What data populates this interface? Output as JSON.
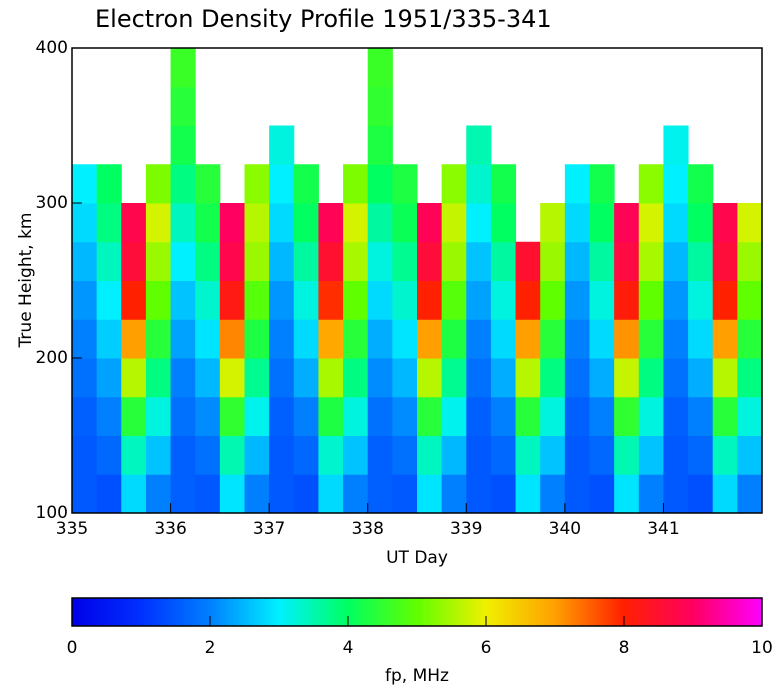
{
  "chart_data": {
    "type": "heatmap",
    "title": "Electron Density Profile 1951/335-341",
    "x_label": "UT Day",
    "y_label": "True Height, km",
    "x": [
      335,
      335.25,
      335.5,
      335.75,
      336,
      336.25,
      336.5,
      336.75,
      337,
      337.25,
      337.5,
      337.75,
      338,
      338.25,
      338.5,
      338.75,
      339,
      339.25,
      339.5,
      339.75,
      340,
      340.25,
      340.5,
      340.75,
      341,
      341.25,
      341.5,
      341.75,
      342
    ],
    "y": [
      100,
      125,
      150,
      175,
      200,
      225,
      250,
      275,
      300,
      325,
      350,
      375,
      400
    ],
    "xlim": [
      335,
      342
    ],
    "xticks": [
      335,
      336,
      337,
      338,
      339,
      340,
      341
    ],
    "ylim": [
      100,
      400
    ],
    "yticks": [
      100,
      200,
      300,
      400
    ],
    "z": [
      [
        1.5,
        1.5,
        1.6,
        1.8,
        2,
        2.2,
        2.5,
        2.8,
        3,
        null,
        null,
        null
      ],
      [
        1.4,
        1.7,
        2,
        2.3,
        2.7,
        3,
        3.4,
        3.8,
        4,
        null,
        null,
        null
      ],
      [
        2.8,
        3.4,
        4.4,
        5.6,
        7,
        8,
        8.6,
        8.8,
        null,
        null,
        null,
        null
      ],
      [
        2,
        2.6,
        3.2,
        3.8,
        4.4,
        5,
        5.4,
        5.8,
        5.2,
        null,
        null,
        null
      ],
      [
        1.6,
        1.6,
        1.8,
        2,
        2.3,
        2.6,
        3,
        3.4,
        3.8,
        4.2,
        4.4,
        4.6
      ],
      [
        1.5,
        1.8,
        2.1,
        2.5,
        2.9,
        3.3,
        3.8,
        4.2,
        4.4,
        null,
        null,
        null
      ],
      [
        2.9,
        3.5,
        4.5,
        5.8,
        7.2,
        8.2,
        8.8,
        9,
        null,
        null,
        null,
        null
      ],
      [
        2,
        2.5,
        3.1,
        3.7,
        4.3,
        4.9,
        5.4,
        5.6,
        5.3,
        null,
        null,
        null
      ],
      [
        1.5,
        1.5,
        1.6,
        1.8,
        2,
        2.2,
        2.5,
        2.8,
        3,
        3.2,
        null,
        null
      ],
      [
        1.4,
        1.7,
        2,
        2.4,
        2.8,
        3.2,
        3.6,
        4,
        4.2,
        null,
        null,
        null
      ],
      [
        2.8,
        3.3,
        4.3,
        5.5,
        6.9,
        7.9,
        8.5,
        8.9,
        null,
        null,
        null,
        null
      ],
      [
        2,
        2.6,
        3.2,
        3.8,
        4.4,
        5,
        5.5,
        5.8,
        5.2,
        null,
        null,
        null
      ],
      [
        1.6,
        1.6,
        1.8,
        2.1,
        2.4,
        2.8,
        3.2,
        3.6,
        4,
        4.3,
        4.5,
        4.6
      ],
      [
        1.5,
        1.8,
        2.1,
        2.5,
        2.9,
        3.3,
        3.7,
        4.1,
        4.3,
        null,
        null,
        null
      ],
      [
        2.9,
        3.4,
        4.4,
        5.6,
        7,
        8,
        8.6,
        8.9,
        null,
        null,
        null,
        null
      ],
      [
        2,
        2.5,
        3.1,
        3.7,
        4.3,
        4.9,
        5.4,
        5.7,
        5.3,
        null,
        null,
        null
      ],
      [
        1.5,
        1.5,
        1.6,
        1.8,
        2,
        2.3,
        2.6,
        3,
        3.3,
        3.5,
        null,
        null
      ],
      [
        1.4,
        1.7,
        2,
        2.4,
        2.8,
        3.2,
        3.6,
        4,
        4.2,
        null,
        null,
        null
      ],
      [
        2.9,
        3.4,
        4.4,
        5.6,
        7,
        8,
        8.5,
        null,
        null,
        null,
        null,
        null
      ],
      [
        2,
        2.6,
        3.2,
        3.8,
        4.4,
        5,
        5.4,
        5.6,
        null,
        null,
        null,
        null
      ],
      [
        1.5,
        1.5,
        1.6,
        1.8,
        2,
        2.2,
        2.5,
        2.8,
        3,
        null,
        null,
        null
      ],
      [
        1.4,
        1.7,
        2,
        2.4,
        2.8,
        3.2,
        3.6,
        4,
        4.2,
        null,
        null,
        null
      ],
      [
        2.9,
        3.5,
        4.5,
        5.7,
        7.1,
        8.1,
        8.7,
        8.9,
        null,
        null,
        null,
        null
      ],
      [
        2,
        2.6,
        3.2,
        3.8,
        4.4,
        5,
        5.5,
        5.8,
        5.3,
        null,
        null,
        null
      ],
      [
        1.5,
        1.5,
        1.6,
        1.8,
        2,
        2.2,
        2.5,
        2.8,
        3,
        3.1,
        null,
        null
      ],
      [
        1.4,
        1.7,
        2,
        2.4,
        2.8,
        3.2,
        3.6,
        4,
        4.2,
        null,
        null,
        null
      ],
      [
        2.8,
        3.4,
        4.4,
        5.6,
        7,
        8,
        8.6,
        8.8,
        null,
        null,
        null,
        null
      ],
      [
        2,
        2.6,
        3.2,
        3.8,
        4.4,
        5,
        5.4,
        5.8,
        null,
        null,
        null,
        null
      ]
    ],
    "colorbar_label": "fp, MHz",
    "clim": [
      0,
      10
    ],
    "cticks": [
      0,
      2,
      4,
      6,
      8,
      10
    ],
    "colorscale": [
      "#0000e8",
      "#0030ff",
      "#0080ff",
      "#00f0ff",
      "#00ff60",
      "#60ff00",
      "#f0f000",
      "#ffa000",
      "#ff2000",
      "#ff0060",
      "#ff00ff"
    ]
  }
}
